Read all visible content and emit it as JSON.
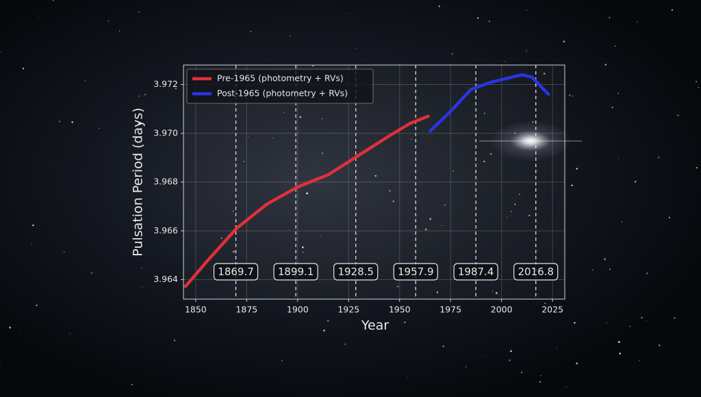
{
  "chart_data": {
    "type": "line",
    "x_label": "Year",
    "y_label": "Pulsation Period (days)",
    "series": [
      {
        "name": "Pre-1965 (photometry + RVs)",
        "color": "#e0303a",
        "x": [
          1845,
          1855,
          1870,
          1885,
          1900,
          1915,
          1930,
          1945,
          1955,
          1964
        ],
        "values": [
          3.96372,
          3.9647,
          3.9661,
          3.9671,
          3.9678,
          3.9683,
          3.9691,
          3.9699,
          3.9704,
          3.9707
        ]
      },
      {
        "name": "Post-1965 (photometry + RVs)",
        "color": "#2a35e0",
        "x": [
          1965,
          1975,
          1985,
          1995,
          2005,
          2010,
          2015,
          2023
        ],
        "values": [
          3.9701,
          3.9709,
          3.9718,
          3.9721,
          3.9723,
          3.9724,
          3.9723,
          3.9716
        ]
      }
    ],
    "vlines": [
      1869.7,
      1899.1,
      1928.5,
      1957.9,
      1987.4,
      2016.8
    ],
    "xlim": [
      1844,
      2031
    ],
    "ylim": [
      3.9632,
      3.9728
    ],
    "xticks": [
      1850,
      1875,
      1900,
      1925,
      1950,
      1975,
      2000,
      2025
    ],
    "yticks": [
      3.964,
      3.966,
      3.968,
      {
        "value": 3.97,
        "label": "3.970"
      },
      3.972
    ],
    "grid": true,
    "legend": "upper-left"
  }
}
